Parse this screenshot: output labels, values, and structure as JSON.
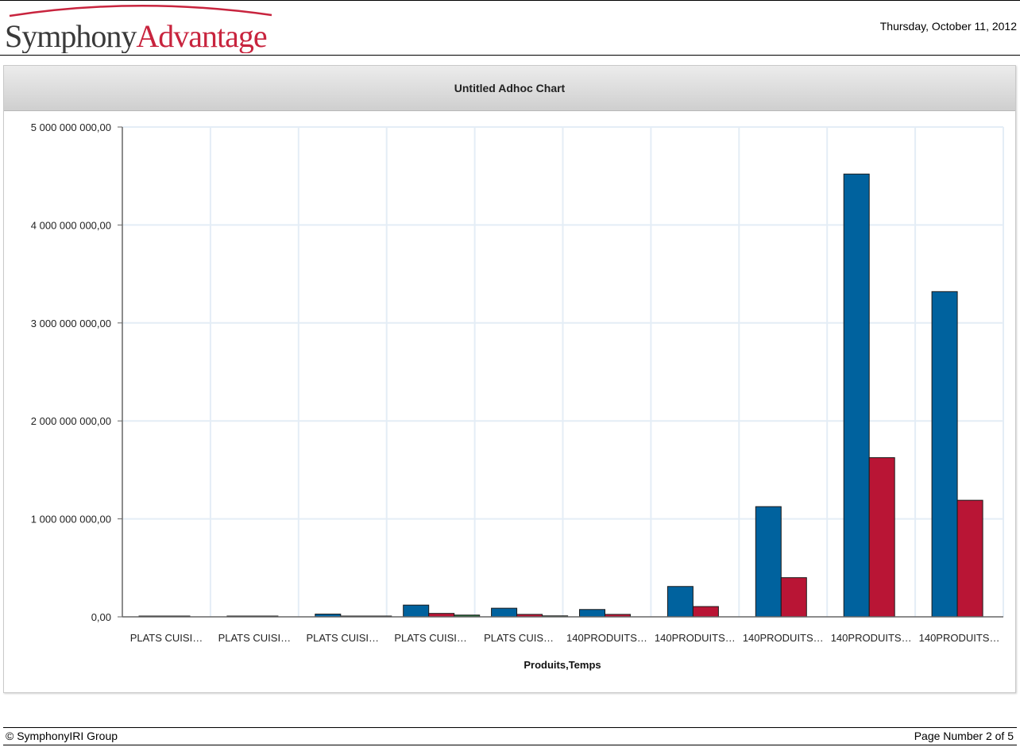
{
  "header": {
    "logo_part1": "Symphony",
    "logo_part2": "Advantage",
    "date": "Thursday, October 11, 2012"
  },
  "footer": {
    "copyright": "© SymphonyIRI Group",
    "page_number": "Page Number 2 of 5"
  },
  "colors": {
    "series_blue": "#00629e",
    "series_red": "#b91535",
    "logo_red": "#c8243e",
    "grid": "#e4edf6"
  },
  "chart_data": {
    "type": "bar",
    "title": "Untitled Adhoc Chart",
    "xlabel": "Produits,Temps",
    "ylabel": "",
    "ylim": [
      0,
      5000000000
    ],
    "yticks": [
      0,
      1000000000,
      2000000000,
      3000000000,
      4000000000,
      5000000000
    ],
    "ytick_labels": [
      "0,00",
      "1 000 000 000,00",
      "2 000 000 000,00",
      "3 000 000 000,00",
      "4 000 000 000,00",
      "5 000 000 000,00"
    ],
    "grid": true,
    "legend": "none",
    "categories": [
      "PLATS CUISI…",
      "PLATS CUISI…",
      "PLATS CUISI…",
      "PLATS CUISI…",
      "PLATS CUIS…",
      "140PRODUITS…",
      "140PRODUITS…",
      "140PRODUITS…",
      "140PRODUITS…",
      "140PRODUITS…"
    ],
    "series": [
      {
        "values": [
          3000000,
          8000000,
          28000000,
          120000000,
          88000000,
          75000000,
          310000000,
          1125000000,
          4520000000,
          3320000000
        ]
      },
      {
        "values": [
          1000000,
          3000000,
          8000000,
          35000000,
          25000000,
          25000000,
          105000000,
          400000000,
          1625000000,
          1190000000
        ]
      },
      {
        "values": [
          0,
          0,
          4000000,
          18000000,
          10000000,
          0,
          0,
          0,
          0,
          0
        ]
      }
    ]
  }
}
